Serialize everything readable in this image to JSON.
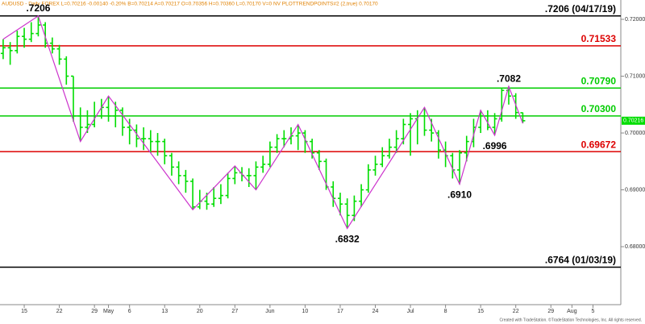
{
  "chart_data": {
    "type": "ohlc",
    "header": "AUDUSD - Daily FOREX  L=0.70216  -0.00140  -0.20%  B=0.70214  A=0.70217  O=0.70356  H=0.70360  L=0.70170  V=0  NV  PLOTTRENDPOINTS#2 (2,true)  0.70170",
    "footer": "Created with TradeStation. ©TradeStation Technologies, Inc. All rights reserved.",
    "color": "#00dd00",
    "zigzag_color": "#cc33cc",
    "xlim": [
      -0.45,
      87.96
    ],
    "ylim": [
      0.6698,
      0.7234
    ],
    "yticks": [
      {
        "value": 0.72,
        "label": "0.72000"
      },
      {
        "value": 0.71,
        "label": "0.71000"
      },
      {
        "value": 0.7,
        "label": "0.70000"
      },
      {
        "value": 0.69,
        "label": "0.69000"
      },
      {
        "value": 0.68,
        "label": "0.68000"
      }
    ],
    "xticks": [
      {
        "value": 3,
        "label": "15"
      },
      {
        "value": 8,
        "label": "22"
      },
      {
        "value": 13,
        "label": "29"
      },
      {
        "value": 15,
        "label": "May"
      },
      {
        "value": 18,
        "label": "6"
      },
      {
        "value": 23,
        "label": "13"
      },
      {
        "value": 28,
        "label": "20"
      },
      {
        "value": 33,
        "label": "27"
      },
      {
        "value": 38,
        "label": "Jun"
      },
      {
        "value": 43,
        "label": "10"
      },
      {
        "value": 48,
        "label": "17"
      },
      {
        "value": 53,
        "label": "24"
      },
      {
        "value": 58,
        "label": "Jul"
      },
      {
        "value": 63,
        "label": "8"
      },
      {
        "value": 68,
        "label": "15"
      },
      {
        "value": 73,
        "label": "22"
      },
      {
        "value": 78,
        "label": "29"
      },
      {
        "value": 81,
        "label": "Aug"
      },
      {
        "value": 84,
        "label": "5"
      }
    ],
    "open": [
      0.714,
      0.715,
      0.7145,
      0.717,
      0.7165,
      0.7175,
      0.719,
      0.7158,
      0.7148,
      0.713,
      0.71,
      0.703,
      0.701,
      0.7015,
      0.703,
      0.7045,
      0.703,
      0.704,
      0.701,
      0.7005,
      0.699,
      0.699,
      0.6985,
      0.6985,
      0.696,
      0.694,
      0.6925,
      0.6915,
      0.687,
      0.688,
      0.6875,
      0.6885,
      0.689,
      0.692,
      0.693,
      0.6925,
      0.6925,
      0.694,
      0.6945,
      0.6975,
      0.699,
      0.699,
      0.6995,
      0.7,
      0.6985,
      0.6965,
      0.695,
      0.6905,
      0.6885,
      0.6875,
      0.6855,
      0.688,
      0.69,
      0.6935,
      0.6945,
      0.696,
      0.6975,
      0.699,
      0.7015,
      0.7025,
      0.703,
      0.7005,
      0.7,
      0.697,
      0.696,
      0.6935,
      0.6965,
      0.6985,
      0.701,
      0.703,
      0.701,
      0.7025,
      0.7075,
      0.7065,
      0.70356
    ],
    "high": [
      0.7165,
      0.716,
      0.718,
      0.7185,
      0.7195,
      0.7206,
      0.7195,
      0.7168,
      0.7155,
      0.7135,
      0.71,
      0.7045,
      0.704,
      0.7055,
      0.706,
      0.7065,
      0.7055,
      0.7045,
      0.7025,
      0.7015,
      0.701,
      0.7005,
      0.7,
      0.699,
      0.6965,
      0.695,
      0.6935,
      0.692,
      0.69,
      0.6895,
      0.6905,
      0.691,
      0.693,
      0.6942,
      0.694,
      0.6938,
      0.695,
      0.696,
      0.6985,
      0.6998,
      0.7005,
      0.701,
      0.7015,
      0.7005,
      0.699,
      0.697,
      0.6955,
      0.6915,
      0.6895,
      0.6885,
      0.689,
      0.691,
      0.6945,
      0.696,
      0.6975,
      0.699,
      0.7005,
      0.7025,
      0.7035,
      0.704,
      0.7045,
      0.7025,
      0.7005,
      0.6985,
      0.6965,
      0.697,
      0.6995,
      0.7025,
      0.704,
      0.704,
      0.7035,
      0.708,
      0.7082,
      0.707,
      0.7036
    ],
    "low": [
      0.713,
      0.712,
      0.714,
      0.715,
      0.716,
      0.717,
      0.715,
      0.714,
      0.712,
      0.7085,
      0.702,
      0.6985,
      0.7,
      0.701,
      0.7025,
      0.702,
      0.701,
      0.6995,
      0.698,
      0.6975,
      0.697,
      0.6965,
      0.696,
      0.6945,
      0.6925,
      0.691,
      0.6895,
      0.6865,
      0.6866,
      0.6865,
      0.687,
      0.6875,
      0.6885,
      0.691,
      0.6915,
      0.6905,
      0.69,
      0.693,
      0.694,
      0.6965,
      0.6975,
      0.698,
      0.697,
      0.6965,
      0.6955,
      0.6935,
      0.69,
      0.687,
      0.6855,
      0.6832,
      0.6845,
      0.687,
      0.6895,
      0.6925,
      0.694,
      0.6955,
      0.6965,
      0.698,
      0.696,
      0.698,
      0.6995,
      0.6985,
      0.6955,
      0.694,
      0.692,
      0.691,
      0.695,
      0.6975,
      0.7,
      0.7005,
      0.6996,
      0.702,
      0.705,
      0.7025,
      0.7017
    ],
    "close": [
      0.715,
      0.7145,
      0.717,
      0.7165,
      0.7175,
      0.719,
      0.7158,
      0.7148,
      0.713,
      0.71,
      0.703,
      0.701,
      0.7015,
      0.703,
      0.7045,
      0.703,
      0.704,
      0.701,
      0.7005,
      0.699,
      0.699,
      0.6985,
      0.6985,
      0.696,
      0.694,
      0.6925,
      0.6915,
      0.687,
      0.688,
      0.6875,
      0.6885,
      0.689,
      0.692,
      0.693,
      0.6925,
      0.6925,
      0.694,
      0.6945,
      0.6975,
      0.699,
      0.699,
      0.6995,
      0.7,
      0.6985,
      0.6965,
      0.695,
      0.6905,
      0.6885,
      0.6875,
      0.6855,
      0.688,
      0.69,
      0.6935,
      0.6945,
      0.696,
      0.6975,
      0.699,
      0.7015,
      0.7025,
      0.703,
      0.7005,
      0.7,
      0.697,
      0.696,
      0.6935,
      0.6965,
      0.6985,
      0.701,
      0.703,
      0.701,
      0.7025,
      0.7075,
      0.7065,
      0.7036,
      0.70216
    ],
    "zigzag": {
      "x": [
        0,
        5,
        11,
        15,
        27,
        33,
        36,
        42,
        49,
        60,
        65,
        68,
        70,
        72,
        74
      ],
      "values": [
        0.7165,
        0.7206,
        0.6985,
        0.7065,
        0.6865,
        0.6942,
        0.69,
        0.7015,
        0.6832,
        0.7045,
        0.691,
        0.704,
        0.6996,
        0.7082,
        0.7017
      ]
    },
    "levels": [
      {
        "value": 0.7206,
        "label": ".7206 (04/17/19)",
        "color": "#000000"
      },
      {
        "value": 0.71533,
        "label": "0.71533",
        "color": "#dd0000"
      },
      {
        "value": 0.7079,
        "label": "0.70790",
        "color": "#00cc00"
      },
      {
        "value": 0.703,
        "label": "0.70300",
        "color": "#00cc00"
      },
      {
        "value": 0.69672,
        "label": "0.69672",
        "color": "#dd0000"
      },
      {
        "value": 0.6764,
        "label": ".6764 (01/03/19)",
        "color": "#000000"
      }
    ],
    "annotations": [
      {
        "x": 5,
        "value": 0.7206,
        "label": ".7206",
        "position": "above"
      },
      {
        "x": 72,
        "value": 0.7082,
        "label": ".7082",
        "position": "above"
      },
      {
        "x": 70,
        "value": 0.6996,
        "label": ".6996",
        "position": "below"
      },
      {
        "x": 65,
        "value": 0.691,
        "label": ".6910",
        "position": "below"
      },
      {
        "x": 49,
        "value": 0.6832,
        "label": ".6832",
        "position": "below"
      }
    ],
    "last": {
      "value": 0.70216,
      "label": "0.70216"
    }
  }
}
